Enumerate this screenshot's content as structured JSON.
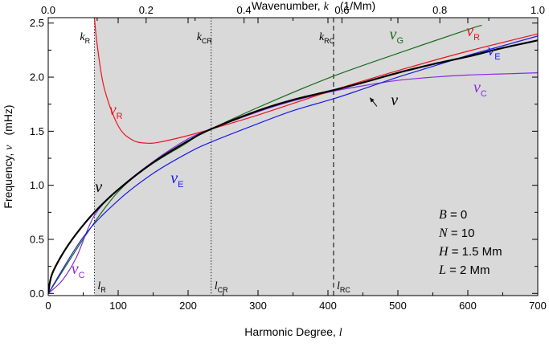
{
  "chart_data": {
    "type": "line",
    "x_axis_bottom": {
      "title_text": "Harmonic Degree, ",
      "title_var": "l",
      "range": [
        0,
        700
      ],
      "ticks": [
        0,
        100,
        200,
        300,
        400,
        500,
        600,
        700
      ],
      "tick_labels": [
        "0",
        "100",
        "200",
        "300",
        "400",
        "500",
        "600",
        "700"
      ]
    },
    "x_axis_top": {
      "title_text": "Wavenumber, ",
      "title_var": "k",
      "title_unit": "(1/Mm)",
      "range": [
        0,
        1.0
      ],
      "ticks": [
        0,
        0.2,
        0.4,
        0.6,
        0.8,
        1.0
      ],
      "tick_labels": [
        "0.0",
        "0.2",
        "0.4",
        "0.6",
        "0.8",
        "1.0"
      ]
    },
    "y_axis": {
      "title_text": "Frequency, ",
      "title_var": "ν",
      "title_unit": "(mHz)",
      "range": [
        -0.02,
        2.55
      ],
      "ticks": [
        0,
        0.5,
        1.0,
        1.5,
        2.0,
        2.5
      ],
      "tick_labels": [
        "0.0",
        "0.5",
        "1.0",
        "1.5",
        "2.0",
        "2.5"
      ]
    },
    "shaded_region_x_start": 66,
    "vertical_markers": [
      {
        "x": 66,
        "style": "dotted",
        "top_label": "k",
        "top_sub": "R",
        "bottom_label": "l",
        "bottom_sub": "R"
      },
      {
        "x": 233,
        "style": "dotted",
        "top_label": "k",
        "top_sub": "CR",
        "bottom_label": "l",
        "bottom_sub": "CR"
      },
      {
        "x": 408,
        "style": "dashed",
        "top_label": "k",
        "top_sub": "RC",
        "bottom_label": "l",
        "bottom_sub": "RC"
      }
    ],
    "series": [
      {
        "name": "ν",
        "color": "#000000",
        "x": [
          0,
          5,
          20,
          40,
          66,
          100,
          150,
          200,
          233,
          300,
          350,
          408,
          450,
          500,
          550,
          600,
          650,
          700
        ],
        "y": [
          0,
          0.17,
          0.36,
          0.55,
          0.75,
          0.96,
          1.21,
          1.41,
          1.52,
          1.69,
          1.79,
          1.88,
          1.95,
          2.04,
          2.12,
          2.19,
          2.27,
          2.34
        ]
      },
      {
        "name": "ν_G",
        "color": "#1a6b1a",
        "x": [
          0,
          100,
          200,
          233,
          300,
          400,
          500,
          600,
          620
        ],
        "y": [
          0,
          0.94,
          1.4,
          1.52,
          1.72,
          1.99,
          2.22,
          2.44,
          2.48
        ]
      },
      {
        "name": "ν_R",
        "color": "#e8141e",
        "x": [
          66,
          70,
          80,
          100,
          120,
          140,
          160,
          200,
          233,
          300,
          408,
          500,
          600,
          700
        ],
        "y": [
          2.55,
          2.3,
          1.9,
          1.55,
          1.42,
          1.39,
          1.4,
          1.46,
          1.52,
          1.65,
          1.88,
          2.06,
          2.24,
          2.4
        ]
      },
      {
        "name": "ν_E",
        "color": "#1a1ae6",
        "x": [
          0,
          50,
          100,
          150,
          200,
          233,
          300,
          350,
          408,
          450,
          500,
          550,
          600,
          650,
          700
        ],
        "y": [
          0,
          0.52,
          0.86,
          1.11,
          1.3,
          1.4,
          1.57,
          1.69,
          1.8,
          1.89,
          2.0,
          2.1,
          2.2,
          2.29,
          2.38
        ]
      },
      {
        "name": "ν_C",
        "color": "#8a2be2",
        "x": [
          0,
          20,
          40,
          66,
          100,
          150,
          200,
          233,
          300,
          350,
          408,
          450,
          500,
          550,
          600,
          650,
          700
        ],
        "y": [
          0,
          0.12,
          0.33,
          0.72,
          0.96,
          1.22,
          1.43,
          1.52,
          1.68,
          1.78,
          1.87,
          1.92,
          1.97,
          2.0,
          2.02,
          2.03,
          2.04
        ]
      }
    ],
    "curve_labels": [
      {
        "series": "ν_G",
        "symbol": "ν",
        "sub": "G",
        "color": "#1a6b1a",
        "x": 488,
        "y": 2.35
      },
      {
        "series": "ν_R",
        "symbol": "ν",
        "sub": "R",
        "color": "#e8141e",
        "x": 598,
        "y": 2.38
      },
      {
        "series": "ν_E",
        "symbol": "ν",
        "sub": "E",
        "color": "#1a1ae6",
        "x": 628,
        "y": 2.2
      },
      {
        "series": "ν_C",
        "symbol": "ν",
        "sub": "C",
        "color": "#8a2be2",
        "x": 608,
        "y": 1.86
      },
      {
        "series": "ν",
        "symbol": "ν",
        "sub": "",
        "color": "#000000",
        "x": 490,
        "y": 1.74
      },
      {
        "series": "ν_R",
        "symbol": "ν",
        "sub": "R",
        "color": "#e8141e",
        "x": 87,
        "y": 1.65
      },
      {
        "series": "ν",
        "symbol": "ν",
        "sub": "",
        "color": "#000000",
        "x": 67,
        "y": 0.94
      },
      {
        "series": "ν_E",
        "symbol": "ν",
        "sub": "E",
        "color": "#1a1ae6",
        "x": 175,
        "y": 1.02
      },
      {
        "series": "ν_C",
        "symbol": "ν",
        "sub": "C",
        "color": "#8a2be2",
        "x": 33,
        "y": 0.18
      }
    ],
    "pointer_arrow": {
      "from": [
        470,
        1.73
      ],
      "to": [
        460,
        1.81
      ]
    },
    "parameters": [
      {
        "var": "B",
        "value": "0"
      },
      {
        "var": "N",
        "value": "10"
      },
      {
        "var": "H",
        "value": "1.5 Mm"
      },
      {
        "var": "L",
        "value": "2 Mm"
      }
    ],
    "grid": false,
    "background": "#d9d9d9"
  }
}
